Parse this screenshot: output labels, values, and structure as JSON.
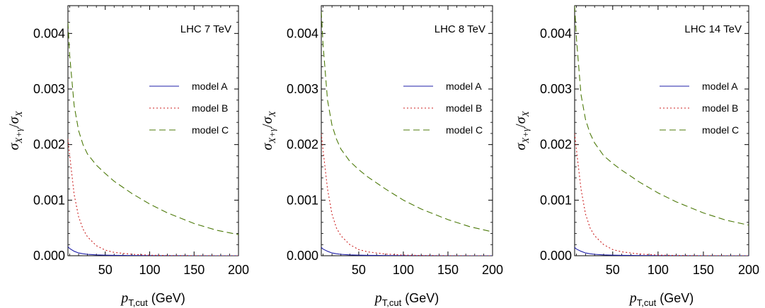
{
  "chart_data": [
    {
      "type": "line",
      "annotation": "LHC 7 TeV",
      "xlabel_main": "p",
      "xlabel_sub": "T,cut",
      "xlabel_unit": "(GeV)",
      "ylabel": "σX+γ/σX",
      "xlim": [
        8,
        200
      ],
      "ylim": [
        0,
        0.0045
      ],
      "xticks": [
        "50",
        "100",
        "150",
        "200"
      ],
      "xtick_values": [
        50,
        100,
        150,
        200
      ],
      "yticks": [
        "0.000",
        "0.001",
        "0.002",
        "0.003",
        "0.004"
      ],
      "ytick_values": [
        0,
        0.001,
        0.002,
        0.003,
        0.004
      ],
      "x": [
        8,
        10,
        15,
        20,
        25,
        30,
        40,
        50,
        60,
        80,
        100,
        120,
        150,
        175,
        200
      ],
      "series": [
        {
          "name": "model A",
          "color": "#1f1fa8",
          "dash": "solid",
          "values": [
            0.00016,
            0.00013,
            8e-05,
            5e-05,
            3.5e-05,
            2.5e-05,
            1.5e-05,
            1e-05,
            7e-06,
            4e-06,
            2e-06,
            1e-06,
            0,
            0,
            0
          ]
        },
        {
          "name": "model B",
          "color": "#cc2222",
          "dash": "dotted",
          "values": [
            0.0021,
            0.0018,
            0.0011,
            0.0007,
            0.00048,
            0.00034,
            0.00018,
            0.0001,
            6e-05,
            2.5e-05,
            1e-05,
            4e-06,
            1e-06,
            0,
            0
          ]
        },
        {
          "name": "model C",
          "color": "#4d7a0a",
          "dash": "dashed",
          "values": [
            0.0042,
            0.0036,
            0.0027,
            0.00225,
            0.002,
            0.00183,
            0.00163,
            0.00148,
            0.00134,
            0.00112,
            0.00093,
            0.00077,
            0.00058,
            0.00046,
            0.00038
          ]
        }
      ]
    },
    {
      "type": "line",
      "annotation": "LHC 8 TeV",
      "xlabel_main": "p",
      "xlabel_sub": "T,cut",
      "xlabel_unit": "(GeV)",
      "ylabel": "σX+γ/σX",
      "xlim": [
        8,
        200
      ],
      "ylim": [
        0,
        0.0045
      ],
      "xticks": [
        "50",
        "100",
        "150",
        "200"
      ],
      "xtick_values": [
        50,
        100,
        150,
        200
      ],
      "yticks": [
        "0.000",
        "0.001",
        "0.002",
        "0.003",
        "0.004"
      ],
      "ytick_values": [
        0,
        0.001,
        0.002,
        0.003,
        0.004
      ],
      "x": [
        8,
        10,
        15,
        20,
        25,
        30,
        40,
        50,
        60,
        80,
        100,
        120,
        150,
        175,
        200
      ],
      "series": [
        {
          "name": "model A",
          "color": "#1f1fa8",
          "dash": "solid",
          "values": [
            0.00015,
            0.00012,
            8e-05,
            5e-05,
            3.5e-05,
            2.5e-05,
            1.5e-05,
            1e-05,
            7e-06,
            4e-06,
            2e-06,
            1e-06,
            0,
            0,
            0
          ]
        },
        {
          "name": "model B",
          "color": "#cc2222",
          "dash": "dotted",
          "values": [
            0.0022,
            0.0019,
            0.0012,
            0.00075,
            0.0005,
            0.00036,
            0.0002,
            0.00011,
            7e-05,
            3e-05,
            1.2e-05,
            5e-06,
            1e-06,
            0,
            0
          ]
        },
        {
          "name": "model C",
          "color": "#4d7a0a",
          "dash": "dashed",
          "values": [
            0.0044,
            0.0038,
            0.0028,
            0.00235,
            0.0021,
            0.00192,
            0.0017,
            0.00155,
            0.00142,
            0.0012,
            0.001,
            0.00084,
            0.00065,
            0.00052,
            0.00043
          ]
        }
      ]
    },
    {
      "type": "line",
      "annotation": "LHC 14 TeV",
      "xlabel_main": "p",
      "xlabel_sub": "T,cut",
      "xlabel_unit": "(GeV)",
      "ylabel": "σX+γ/σX",
      "xlim": [
        8,
        200
      ],
      "ylim": [
        0,
        0.0045
      ],
      "xticks": [
        "50",
        "100",
        "150",
        "200"
      ],
      "xtick_values": [
        50,
        100,
        150,
        200
      ],
      "yticks": [
        "0.000",
        "0.001",
        "0.002",
        "0.003",
        "0.004"
      ],
      "ytick_values": [
        0,
        0.001,
        0.002,
        0.003,
        0.004
      ],
      "x": [
        8,
        10,
        15,
        20,
        25,
        30,
        40,
        50,
        60,
        80,
        100,
        120,
        150,
        175,
        200
      ],
      "series": [
        {
          "name": "model A",
          "color": "#1f1fa8",
          "dash": "solid",
          "values": [
            0.00015,
            0.00012,
            8e-05,
            5e-05,
            3.5e-05,
            2.5e-05,
            1.5e-05,
            1e-05,
            7e-06,
            4e-06,
            2e-06,
            1e-06,
            0,
            0,
            0
          ]
        },
        {
          "name": "model B",
          "color": "#cc2222",
          "dash": "dotted",
          "values": [
            0.0022,
            0.0019,
            0.0012,
            0.00075,
            0.0005,
            0.00036,
            0.0002,
            0.00011,
            7e-05,
            3e-05,
            1.2e-05,
            5e-06,
            1e-06,
            0,
            0
          ]
        },
        {
          "name": "model C",
          "color": "#4d7a0a",
          "dash": "dashed",
          "values": [
            0.0045,
            0.0039,
            0.0029,
            0.00245,
            0.0022,
            0.00203,
            0.0018,
            0.00166,
            0.00154,
            0.00132,
            0.00113,
            0.00097,
            0.00077,
            0.00064,
            0.00055
          ]
        }
      ]
    }
  ]
}
